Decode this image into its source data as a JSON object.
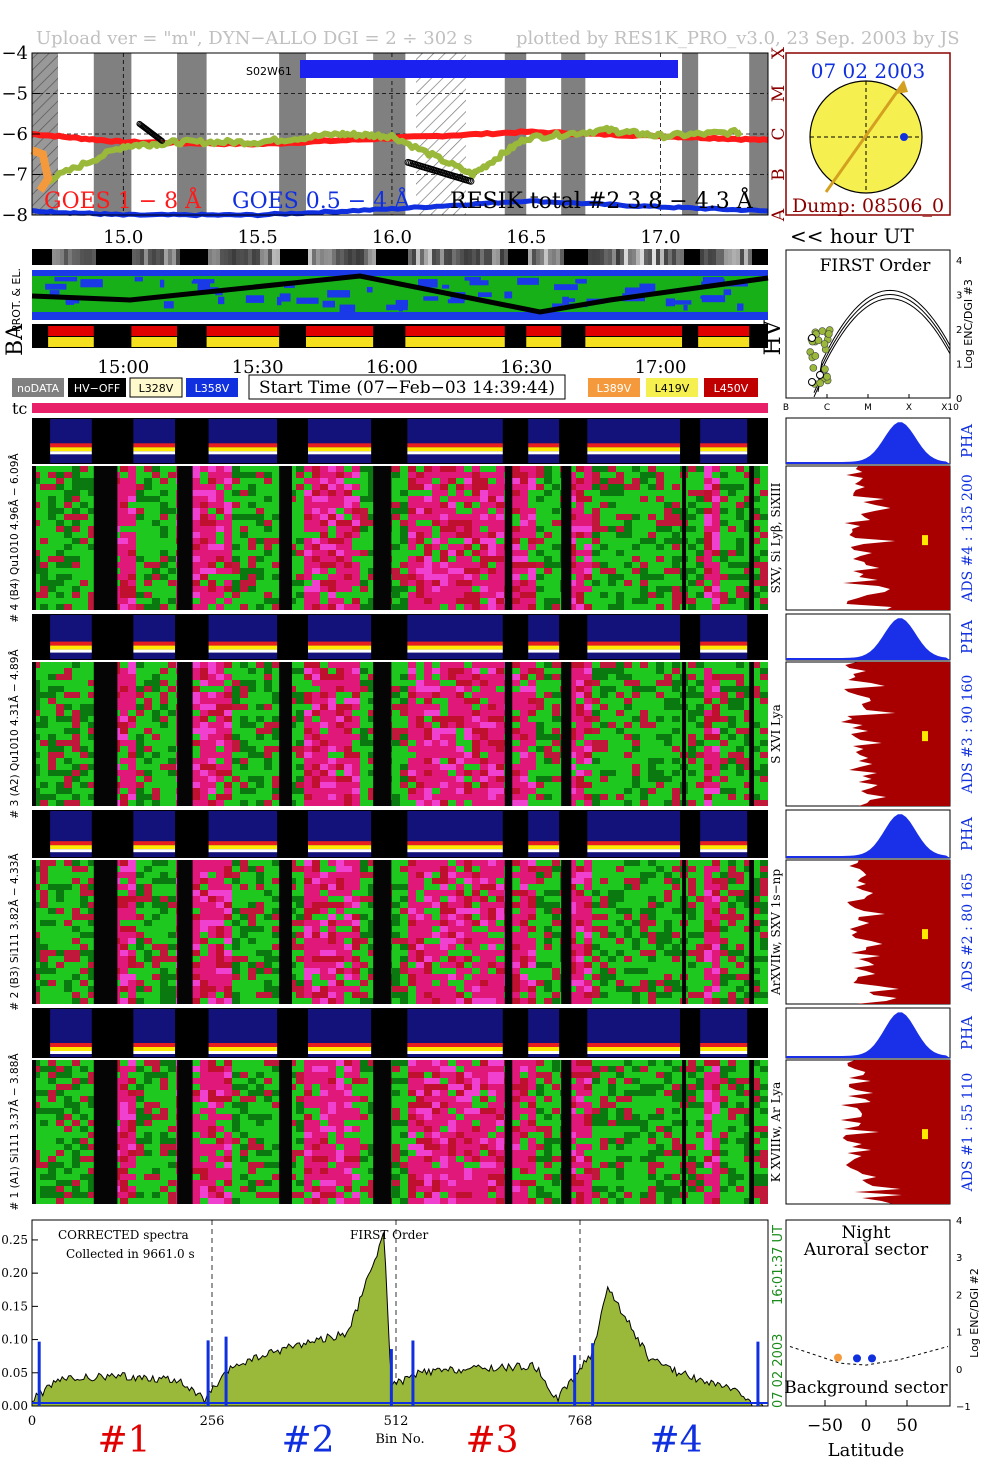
{
  "header": {
    "left": "Upload ver = \"m\", DYN−ALLO DGI =   2 ÷ 302 s",
    "right": "plotted by RES1K_PRO_v3.0, 23 Sep. 2003 by JS"
  },
  "goes_panel": {
    "y_ticks": [
      "−4",
      "−5",
      "−6",
      "−7",
      "−8"
    ],
    "class_labels": [
      "X",
      "M",
      "C",
      "B",
      "A"
    ],
    "tag": "S02W61",
    "label_goes18": "GOES 1 − 8 Å",
    "label_goes054": "GOES 0.5 − 4 Å",
    "label_resik": "RESIK total #2  3.8 − 4.3 Å",
    "colors": {
      "goes18": "#ff1a1a",
      "goes054": "#1030e0",
      "resik": "#9ab83a",
      "night": "#808080"
    }
  },
  "sun_panel": {
    "date": "07 02 2003",
    "dump": "Dump: 08506_0"
  },
  "hour_axis": {
    "ticks": [
      "15.0",
      "15.5",
      "16.0",
      "16.5",
      "17.0"
    ],
    "label": "<< hour UT"
  },
  "orbit_labels": {
    "prot": "PROT. & EL.",
    "ba": "BA",
    "hv": "HV"
  },
  "clock_axis": {
    "ticks": [
      "15:00",
      "15:30",
      "16:00",
      "16:30",
      "17:00"
    ]
  },
  "legend": {
    "nodata": "noDATA",
    "hvoff": "HV−OFF",
    "v1": "L328V",
    "v2": "L358V",
    "start_time": "Start Time (07−Feb−03 14:39:44)",
    "v3": "L389V",
    "v4": "L419V",
    "v5": "L450V"
  },
  "tc_label": "tc",
  "first_order": {
    "title": "FIRST Order",
    "ylabel": "Log ENC/DGI #3",
    "y_ticks": [
      "4",
      "3",
      "2",
      "1",
      "0"
    ],
    "x_ticks": [
      "B",
      "C",
      "M",
      "X",
      "X10"
    ]
  },
  "channels": [
    {
      "left_label": "# 4 (B4) Qu1010 4.96Å − 6.09Å",
      "line_label": "SXV, Si Lyβ, SiXIII",
      "ads_label": "ADS #4 :   135 200",
      "pha": "PHA"
    },
    {
      "left_label": "# 3 (A2) Qu1010  4.31Å − 4.89Å",
      "line_label": "S XVI Lya",
      "ads_label": "ADS #3 :   90 160",
      "pha": "PHA"
    },
    {
      "left_label": "# 2 (B3) Si111  3.82Å − 4.33Å",
      "line_label": "ArXVIIw, SXV 1s−np",
      "ads_label": "ADS #2 :   80 165",
      "pha": "PHA"
    },
    {
      "left_label": "# 1 (A1) Si111  3.37Å − 3.88Å",
      "line_label": "K XVIIIw, Ar Lya",
      "ads_label": "ADS #1 :   55 110",
      "pha": "PHA"
    }
  ],
  "spectrum": {
    "text1": "CORRECTED spectra",
    "text2": "Collected in  9661.0 s",
    "order_label": "FIRST Order",
    "xlabel": "Bin No.",
    "x_ticks": [
      "0",
      "256",
      "512",
      "768"
    ],
    "y_ticks": [
      "0.00",
      "0.05",
      "0.10",
      "0.15",
      "0.20",
      "0.25"
    ],
    "date_vertical": "07 02 2003",
    "time_vertical": "16:01:37 UT",
    "section_labels": [
      "#1",
      "#2",
      "#3",
      "#4"
    ]
  },
  "latitude_panel": {
    "title1": "Night",
    "title2": "Auroral sector",
    "bottom_label": "Background sector",
    "xlabel": "Latitude",
    "x_ticks": [
      "−50",
      "0",
      "50"
    ],
    "ylabel": "Log ENC/DGI #2",
    "y_ticks": [
      "4",
      "3",
      "2",
      "1",
      "0",
      "−1"
    ]
  },
  "chart_data": [
    {
      "type": "line",
      "title": "",
      "x_label": "hour UT",
      "ylim": [
        -8,
        -4
      ],
      "xlim": [
        14.66,
        17.4
      ],
      "series": [
        {
          "name": "GOES 1 − 8 Å",
          "x": [
            14.66,
            15.0,
            15.5,
            16.0,
            16.5,
            17.0,
            17.4
          ],
          "values": [
            -6.0,
            -6.2,
            -6.25,
            -6.1,
            -5.95,
            -6.05,
            -6.15
          ]
        },
        {
          "name": "GOES 0.5 − 4 Å",
          "x": [
            14.66,
            15.0,
            15.5,
            16.0,
            16.5,
            17.0,
            17.4
          ],
          "values": [
            -7.9,
            -8.0,
            -8.0,
            -7.85,
            -7.65,
            -7.8,
            -7.9
          ]
        },
        {
          "name": "RESIK total #2  3.8 − 4.3 Å",
          "x": [
            14.7,
            15.0,
            15.2,
            15.5,
            15.8,
            16.0,
            16.3,
            16.5,
            16.8,
            17.0,
            17.3
          ],
          "values": [
            -7.2,
            -6.3,
            -6.2,
            -6.2,
            -6.0,
            -6.05,
            -7.0,
            -6.1,
            -5.9,
            -6.05,
            -5.95
          ]
        }
      ]
    },
    {
      "type": "area",
      "title": "",
      "x_label": "Bin No.",
      "xlim": [
        0,
        1024
      ],
      "ylim": [
        0,
        0.28
      ],
      "series": [
        {
          "name": "",
          "x": [
            0,
            40,
            120,
            200,
            240,
            280,
            360,
            440,
            490,
            500,
            540,
            600,
            700,
            730,
            780,
            800,
            860,
            900,
            960,
            1000
          ],
          "values": [
            0.01,
            0.04,
            0.045,
            0.04,
            0.01,
            0.06,
            0.09,
            0.11,
            0.26,
            0.03,
            0.05,
            0.055,
            0.06,
            0.01,
            0.08,
            0.18,
            0.07,
            0.05,
            0.03,
            0.01
          ]
        }
      ]
    }
  ]
}
